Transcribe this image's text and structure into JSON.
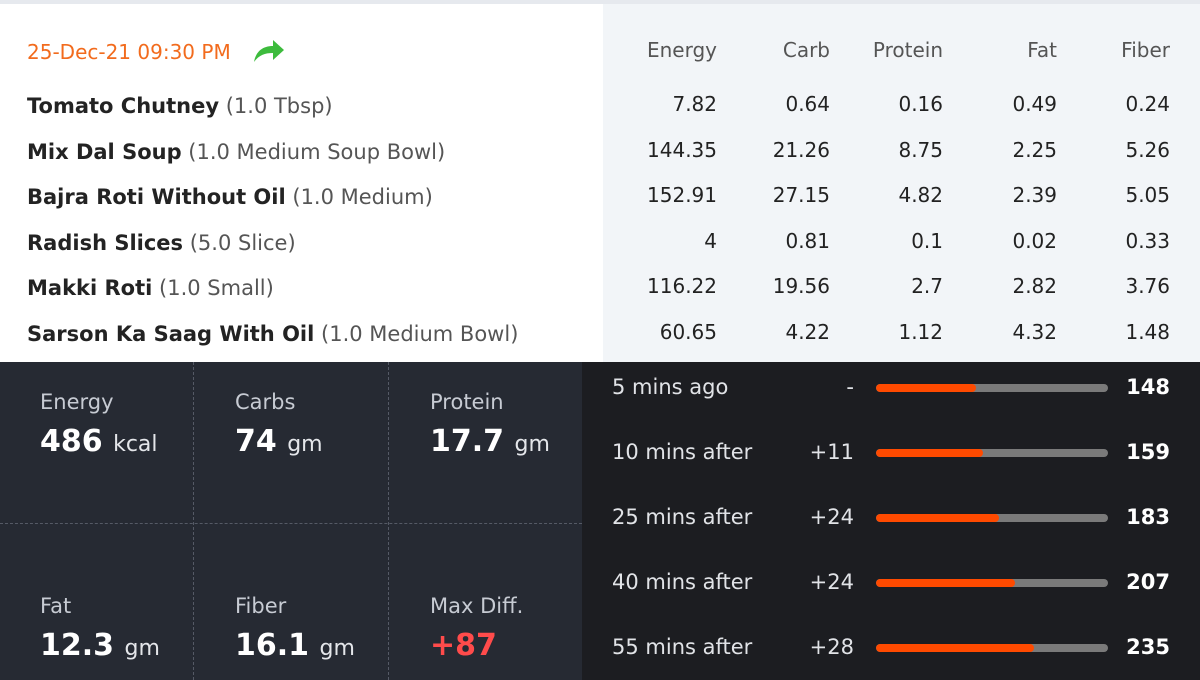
{
  "meal": {
    "datetime": "25-Dec-21 09:30 PM",
    "share_icon": "share-arrow-icon",
    "columns": [
      "Energy",
      "Carb",
      "Protein",
      "Fat",
      "Fiber"
    ],
    "items": [
      {
        "name": "Tomato Chutney",
        "qty": "(1.0 Tbsp)",
        "values": [
          "7.82",
          "0.64",
          "0.16",
          "0.49",
          "0.24"
        ]
      },
      {
        "name": "Mix Dal Soup",
        "qty": "(1.0 Medium Soup Bowl)",
        "values": [
          "144.35",
          "21.26",
          "8.75",
          "2.25",
          "5.26"
        ]
      },
      {
        "name": "Bajra Roti Without Oil",
        "qty": "(1.0 Medium)",
        "values": [
          "152.91",
          "27.15",
          "4.82",
          "2.39",
          "5.05"
        ]
      },
      {
        "name": "Radish Slices",
        "qty": "(5.0 Slice)",
        "values": [
          "4",
          "0.81",
          "0.1",
          "0.02",
          "0.33"
        ]
      },
      {
        "name": "Makki Roti",
        "qty": "(1.0 Small)",
        "values": [
          "116.22",
          "19.56",
          "2.7",
          "2.82",
          "3.76"
        ]
      },
      {
        "name": "Sarson Ka Saag With Oil",
        "qty": "(1.0 Medium Bowl)",
        "values": [
          "60.65",
          "4.22",
          "1.12",
          "4.32",
          "1.48"
        ]
      }
    ]
  },
  "summary": {
    "energy": {
      "label": "Energy",
      "value": "486",
      "unit": "kcal"
    },
    "carbs": {
      "label": "Carbs",
      "value": "74",
      "unit": "gm"
    },
    "protein": {
      "label": "Protein",
      "value": "17.7",
      "unit": "gm"
    },
    "fat": {
      "label": "Fat",
      "value": "12.3",
      "unit": "gm"
    },
    "fiber": {
      "label": "Fiber",
      "value": "16.1",
      "unit": "gm"
    },
    "maxdiff": {
      "label": "Max Diff.",
      "value": "+87",
      "color": "#ff4b4b"
    }
  },
  "glucose": [
    {
      "label": "5 mins ago",
      "delta": "-",
      "value": "148",
      "fill_fraction": 0.43
    },
    {
      "label": "10 mins after",
      "delta": "+11",
      "value": "159",
      "fill_fraction": 0.46
    },
    {
      "label": "25 mins after",
      "delta": "+24",
      "value": "183",
      "fill_fraction": 0.53
    },
    {
      "label": "40 mins after",
      "delta": "+24",
      "value": "207",
      "fill_fraction": 0.6
    },
    {
      "label": "55 mins after",
      "delta": "+28",
      "value": "235",
      "fill_fraction": 0.68
    }
  ],
  "colors": {
    "accent": "#f26b1d",
    "bar_fill": "#ff4a00",
    "bar_track": "#7a7a7a",
    "share_icon": "#3dbb3d"
  }
}
